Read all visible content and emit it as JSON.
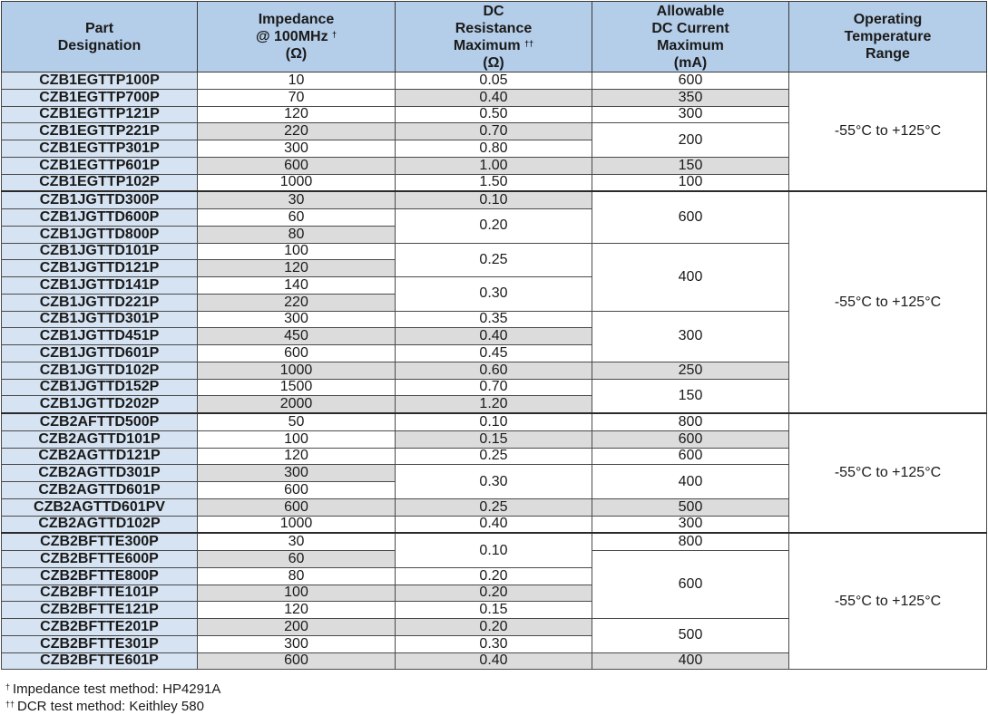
{
  "headers": {
    "part": [
      "Part",
      "Designation"
    ],
    "impedance": {
      "line1": "Impedance",
      "line2": "@ 100MHz",
      "mark": "†",
      "line3": "(Ω)"
    },
    "dcr": {
      "line1": "DC",
      "line2": "Resistance",
      "line3": "Maximum",
      "mark": "††",
      "line4": "(Ω)"
    },
    "current": [
      "Allowable",
      "DC Current",
      "Maximum",
      "(mA)"
    ],
    "temp": [
      "Operating",
      "Temperature",
      "Range"
    ]
  },
  "groups": [
    {
      "temp": "-55°C to +125°C",
      "rows": [
        {
          "part": "CZB1EGTTP100P",
          "impedance": "10",
          "dcr": "0.05",
          "current": "600"
        },
        {
          "part": "CZB1EGTTP700P",
          "impedance": "70",
          "dcr": "0.40",
          "current": "350"
        },
        {
          "part": "CZB1EGTTP121P",
          "impedance": "120",
          "dcr": "0.50",
          "current": "300"
        },
        {
          "part": "CZB1EGTTP221P",
          "impedance": "220",
          "dcr": "0.70",
          "current": "200"
        },
        {
          "part": "CZB1EGTTP301P",
          "impedance": "300",
          "dcr": "0.80",
          "current": "200"
        },
        {
          "part": "CZB1EGTTP601P",
          "impedance": "600",
          "dcr": "1.00",
          "current": "150"
        },
        {
          "part": "CZB1EGTTP102P",
          "impedance": "1000",
          "dcr": "1.50",
          "current": "100"
        }
      ]
    },
    {
      "temp": "-55°C to +125°C",
      "rows": [
        {
          "part": "CZB1JGTTD300P",
          "impedance": "30",
          "dcr": "0.10",
          "current": "600"
        },
        {
          "part": "CZB1JGTTD600P",
          "impedance": "60",
          "dcr": "0.20",
          "current": "600"
        },
        {
          "part": "CZB1JGTTD800P",
          "impedance": "80",
          "dcr": "0.20",
          "current": "600"
        },
        {
          "part": "CZB1JGTTD101P",
          "impedance": "100",
          "dcr": "0.25",
          "current": "400"
        },
        {
          "part": "CZB1JGTTD121P",
          "impedance": "120",
          "dcr": "0.25",
          "current": "400"
        },
        {
          "part": "CZB1JGTTD141P",
          "impedance": "140",
          "dcr": "0.30",
          "current": "400"
        },
        {
          "part": "CZB1JGTTD221P",
          "impedance": "220",
          "dcr": "0.30",
          "current": "400"
        },
        {
          "part": "CZB1JGTTD301P",
          "impedance": "300",
          "dcr": "0.35",
          "current": "300"
        },
        {
          "part": "CZB1JGTTD451P",
          "impedance": "450",
          "dcr": "0.40",
          "current": "300"
        },
        {
          "part": "CZB1JGTTD601P",
          "impedance": "600",
          "dcr": "0.45",
          "current": "300"
        },
        {
          "part": "CZB1JGTTD102P",
          "impedance": "1000",
          "dcr": "0.60",
          "current": "250"
        },
        {
          "part": "CZB1JGTTD152P",
          "impedance": "1500",
          "dcr": "0.70",
          "current": "150"
        },
        {
          "part": "CZB1JGTTD202P",
          "impedance": "2000",
          "dcr": "1.20",
          "current": "150"
        }
      ]
    },
    {
      "temp": "-55°C to +125°C",
      "rows": [
        {
          "part": "CZB2AFTTD500P",
          "impedance": "50",
          "dcr": "0.10",
          "current": "800"
        },
        {
          "part": "CZB2AGTTD101P",
          "impedance": "100",
          "dcr": "0.15",
          "current": "600"
        },
        {
          "part": "CZB2AGTTD121P",
          "impedance": "120",
          "dcr": "0.25",
          "current": "600"
        },
        {
          "part": "CZB2AGTTD301P",
          "impedance": "300",
          "dcr": "0.30",
          "current": "400"
        },
        {
          "part": "CZB2AGTTD601P",
          "impedance": "600",
          "dcr": "0.30",
          "current": "400"
        },
        {
          "part": "CZB2AGTTD601PV",
          "impedance": "600",
          "dcr": "0.25",
          "current": "500"
        },
        {
          "part": "CZB2AGTTD102P",
          "impedance": "1000",
          "dcr": "0.40",
          "current": "300"
        }
      ]
    },
    {
      "temp": "-55°C to +125°C",
      "rows": [
        {
          "part": "CZB2BFTTE300P",
          "impedance": "30",
          "dcr": "0.10",
          "current": "800"
        },
        {
          "part": "CZB2BFTTE600P",
          "impedance": "60",
          "dcr": "0.10",
          "current": "600"
        },
        {
          "part": "CZB2BFTTE800P",
          "impedance": "80",
          "dcr": "0.20",
          "current": "600"
        },
        {
          "part": "CZB2BFTTE101P",
          "impedance": "100",
          "dcr": "0.20",
          "current": "600"
        },
        {
          "part": "CZB2BFTTE121P",
          "impedance": "120",
          "dcr": "0.15",
          "current": "600"
        },
        {
          "part": "CZB2BFTTE201P",
          "impedance": "200",
          "dcr": "0.20",
          "current": "500"
        },
        {
          "part": "CZB2BFTTE301P",
          "impedance": "300",
          "dcr": "0.30",
          "current": "500"
        },
        {
          "part": "CZB2BFTTE601P",
          "impedance": "600",
          "dcr": "0.40",
          "current": "400"
        }
      ]
    }
  ],
  "footnotes": [
    {
      "mark": "†",
      "text": "Impedance test method: HP4291A"
    },
    {
      "mark": "††",
      "text": "DCR test method: Keithley 580"
    }
  ]
}
